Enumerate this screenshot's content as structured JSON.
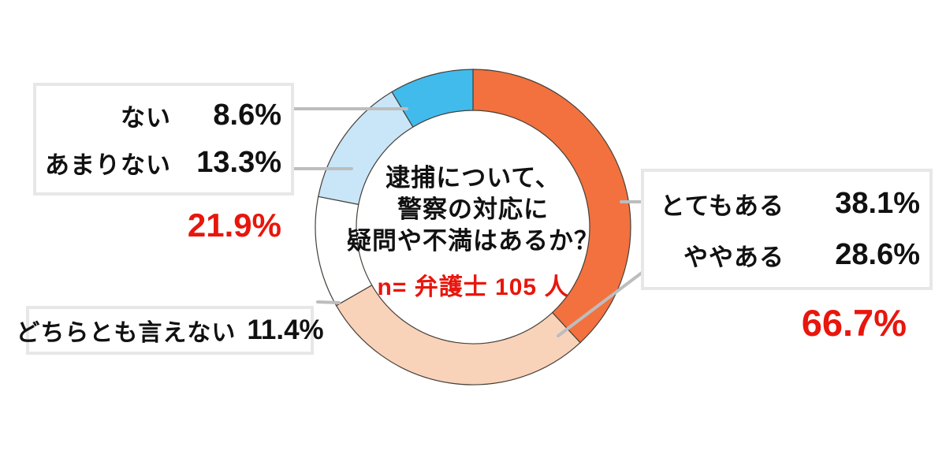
{
  "chart": {
    "center_title_lines": [
      "逮捕について、",
      "警察の対応に",
      "疑問や不満はあるか？"
    ],
    "sample_note": "n= 弁護士 105 人"
  },
  "labels": {
    "negative_box": {
      "rows": [
        {
          "label": "ない",
          "value": "8.6%"
        },
        {
          "label": "あまりない",
          "value": "13.3%"
        }
      ],
      "total": "21.9%"
    },
    "positive_box": {
      "rows": [
        {
          "label": "とてもある",
          "value": "38.1%"
        },
        {
          "label": "ややある",
          "value": "28.6%"
        }
      ],
      "total": "66.7%"
    },
    "neutral_box": {
      "label": "どちらとも言えない",
      "value": "11.4%"
    }
  },
  "chart_data": {
    "type": "pie",
    "subtype": "donut",
    "title": "逮捕について、警察の対応に疑問や不満はあるか？",
    "sample_note": "n= 弁護士 105 人",
    "categories": [
      "とてもある",
      "ややある",
      "どちらとも言えない",
      "あまりない",
      "ない"
    ],
    "values": [
      38.1,
      28.6,
      11.4,
      13.3,
      8.6
    ],
    "colors": [
      "#f2713f",
      "#f9d2ba",
      "#ffffff",
      "#c9e6f8",
      "#41bbec"
    ],
    "start_angle_deg_from_top": 0,
    "direction": "clockwise",
    "group_totals": [
      {
        "members": [
          "とてもある",
          "ややある"
        ],
        "total": 66.7
      },
      {
        "members": [
          "ない",
          "あまりない"
        ],
        "total": 21.9
      }
    ],
    "legend_position": "side-callout-boxes"
  },
  "colors": {
    "accent_red": "#e8160c",
    "leader_gray": "#bdbdbd",
    "box_border_gray": "#e7e7e7",
    "segment_outline": "#454038",
    "background": "#ffffff"
  }
}
